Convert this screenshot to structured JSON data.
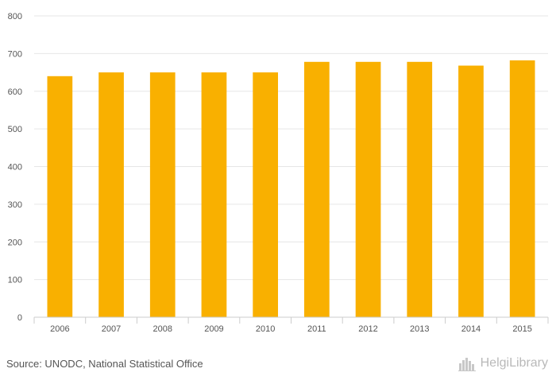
{
  "chart_data": {
    "type": "bar",
    "categories": [
      "2006",
      "2007",
      "2008",
      "2009",
      "2010",
      "2011",
      "2012",
      "2013",
      "2014",
      "2015"
    ],
    "values": [
      640,
      650,
      650,
      650,
      650,
      678,
      678,
      678,
      668,
      682
    ],
    "ylim": [
      0,
      800
    ],
    "yticks": [
      0,
      100,
      200,
      300,
      400,
      500,
      600,
      700,
      800
    ],
    "grid": true,
    "bar_color": "#f9b000"
  },
  "footer": {
    "source": "Source: UNODC, National Statistical Office",
    "brand": "HelgiLibrary",
    "brand_icon": "city-skyline-icon"
  }
}
